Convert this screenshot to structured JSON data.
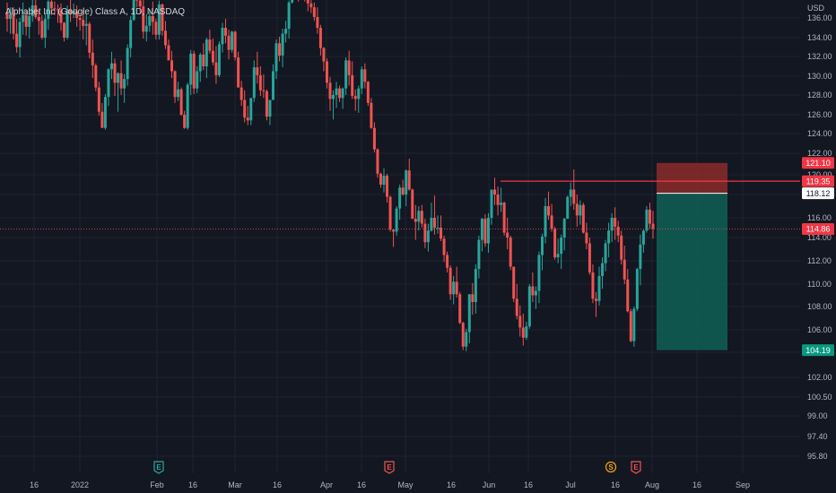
{
  "header": {
    "title": "Alphabet Inc (Google) Class A, 1D, NASDAQ"
  },
  "colors": {
    "background": "#131722",
    "grid": "#1f2330",
    "up": "#26a69a",
    "down": "#ef5350",
    "stop_zone": "#8c2b2b",
    "target_zone": "#0f5c53",
    "level_line": "#f23645",
    "axis_text": "#b2b5be"
  },
  "chart_data": {
    "type": "candlestick",
    "currency": "USD",
    "y_ticks": [
      95.8,
      97.4,
      99.0,
      100.5,
      102.0,
      104.0,
      106.0,
      108.0,
      110.0,
      112.0,
      114.0,
      116.0,
      118.0,
      120.0,
      122.0,
      124.0,
      126.0,
      128.0,
      130.0,
      132.0,
      134.0,
      136.0
    ],
    "x_ticks": [
      "16",
      "2022",
      "Feb",
      "16",
      "Mar",
      "16",
      "Apr",
      "16",
      "May",
      "16",
      "Jun",
      "16",
      "Jul",
      "16",
      "Aug",
      "16",
      "Sep"
    ],
    "price_labels": [
      {
        "value": "121.10",
        "kind": "stop"
      },
      {
        "value": "119.35",
        "kind": "level"
      },
      {
        "value": "118.12",
        "kind": "entry"
      },
      {
        "value": "114.86",
        "kind": "current"
      },
      {
        "value": "104.19",
        "kind": "target"
      }
    ],
    "levels": {
      "horizontal_line": 119.35,
      "current_price": 114.86
    },
    "position": {
      "entry": 118.12,
      "stop": 121.1,
      "target": 104.19,
      "side": "short"
    },
    "events": [
      {
        "symbol": "E",
        "color": "#26a69a",
        "date": "Feb 1"
      },
      {
        "symbol": "E",
        "color": "#ef5350",
        "date": "Apr 26"
      },
      {
        "symbol": "S",
        "color": "#f7a600",
        "date": "Jul 15"
      },
      {
        "symbol": "E",
        "color": "#ef5350",
        "date": "Jul 26"
      }
    ],
    "candles": [
      [
        136.6,
        137.6,
        134.6,
        135.9
      ],
      [
        135.9,
        137.1,
        134.4,
        136.4
      ],
      [
        136.4,
        137.1,
        133.8,
        134.4
      ],
      [
        134.4,
        135.9,
        132.4,
        133.0
      ],
      [
        133.0,
        136.0,
        131.9,
        135.6
      ],
      [
        135.6,
        137.6,
        134.3,
        136.3
      ],
      [
        136.3,
        136.7,
        134.2,
        135.1
      ],
      [
        135.1,
        136.9,
        133.9,
        136.2
      ],
      [
        136.2,
        138.0,
        135.6,
        137.3
      ],
      [
        137.3,
        138.5,
        135.9,
        136.1
      ],
      [
        136.1,
        136.8,
        134.3,
        135.7
      ],
      [
        135.7,
        136.3,
        133.8,
        134.0
      ],
      [
        134.0,
        136.5,
        132.9,
        135.9
      ],
      [
        135.9,
        138.4,
        134.8,
        137.7
      ],
      [
        137.7,
        138.3,
        136.3,
        137.0
      ],
      [
        137.0,
        137.7,
        136.3,
        136.9
      ],
      [
        136.9,
        137.4,
        135.5,
        136.8
      ],
      [
        136.8,
        137.5,
        134.7,
        135.5
      ],
      [
        135.5,
        135.6,
        133.6,
        134.0
      ],
      [
        134.0,
        137.3,
        133.8,
        136.9
      ],
      [
        136.9,
        138.6,
        135.6,
        136.4
      ],
      [
        136.4,
        137.5,
        136.0,
        136.7
      ],
      [
        136.7,
        137.3,
        135.1,
        136.0
      ],
      [
        136.0,
        136.2,
        134.7,
        135.8
      ],
      [
        135.8,
        136.8,
        133.8,
        135.2
      ],
      [
        135.2,
        136.5,
        133.2,
        135.4
      ],
      [
        135.4,
        135.6,
        131.8,
        132.4
      ],
      [
        132.4,
        133.8,
        129.8,
        131.1
      ],
      [
        131.1,
        131.3,
        128.4,
        128.8
      ],
      [
        128.8,
        129.4,
        125.9,
        126.3
      ],
      [
        126.3,
        127.2,
        124.6,
        124.6
      ],
      [
        124.6,
        128.1,
        124.4,
        127.8
      ],
      [
        127.8,
        130.8,
        126.9,
        130.7
      ],
      [
        130.7,
        132.5,
        129.7,
        131.3
      ],
      [
        131.3,
        131.8,
        127.9,
        129.3
      ],
      [
        129.3,
        130.4,
        126.3,
        130.3
      ],
      [
        130.3,
        131.6,
        128.0,
        128.7
      ],
      [
        128.7,
        130.2,
        127.2,
        129.7
      ],
      [
        129.7,
        133.3,
        129.0,
        132.9
      ],
      [
        132.9,
        136.2,
        131.9,
        135.8
      ],
      [
        135.8,
        139.4,
        135.7,
        139.3
      ],
      [
        139.3,
        140.6,
        137.1,
        137.8
      ],
      [
        137.8,
        138.3,
        136.5,
        137.2
      ],
      [
        137.2,
        138.6,
        133.9,
        134.6
      ],
      [
        134.6,
        136.4,
        133.6,
        135.2
      ],
      [
        135.2,
        136.9,
        134.6,
        136.2
      ],
      [
        136.2,
        137.7,
        134.3,
        135.6
      ],
      [
        135.6,
        135.9,
        133.8,
        134.3
      ],
      [
        134.3,
        137.8,
        133.8,
        137.4
      ],
      [
        137.4,
        137.5,
        134.2,
        134.7
      ],
      [
        134.7,
        135.7,
        132.8,
        133.2
      ],
      [
        133.2,
        133.8,
        131.6,
        131.6
      ],
      [
        131.6,
        132.6,
        129.8,
        130.5
      ],
      [
        130.5,
        130.6,
        127.2,
        127.8
      ],
      [
        127.8,
        129.4,
        127.4,
        128.6
      ],
      [
        128.6,
        128.8,
        125.9,
        126.0
      ],
      [
        126.0,
        126.4,
        124.5,
        124.6
      ],
      [
        124.6,
        129.3,
        124.4,
        129.1
      ],
      [
        129.1,
        132.7,
        128.0,
        132.3
      ],
      [
        132.3,
        132.6,
        128.1,
        128.7
      ],
      [
        128.7,
        131.0,
        128.2,
        130.5
      ],
      [
        130.5,
        132.4,
        129.4,
        132.2
      ],
      [
        132.2,
        133.4,
        130.6,
        131.0
      ],
      [
        131.0,
        134.0,
        129.8,
        133.8
      ],
      [
        133.8,
        134.8,
        132.3,
        132.6
      ],
      [
        132.6,
        133.9,
        131.1,
        131.4
      ],
      [
        131.4,
        133.1,
        129.2,
        130.1
      ],
      [
        130.1,
        133.6,
        129.9,
        133.3
      ],
      [
        133.3,
        135.5,
        132.4,
        135.0
      ],
      [
        135.0,
        135.9,
        133.4,
        134.2
      ],
      [
        134.2,
        134.8,
        131.7,
        132.7
      ],
      [
        132.7,
        134.7,
        132.4,
        134.6
      ],
      [
        134.6,
        134.7,
        131.6,
        131.9
      ],
      [
        131.9,
        132.5,
        128.8,
        128.8
      ],
      [
        128.8,
        129.5,
        126.9,
        127.5
      ],
      [
        127.5,
        128.5,
        125.2,
        125.7
      ],
      [
        125.7,
        126.9,
        124.9,
        125.4
      ],
      [
        125.4,
        127.7,
        124.9,
        127.7
      ],
      [
        127.7,
        131.6,
        127.3,
        130.9
      ],
      [
        130.9,
        132.5,
        129.2,
        130.1
      ],
      [
        130.1,
        131.0,
        127.9,
        128.5
      ],
      [
        128.5,
        130.2,
        127.7,
        128.4
      ],
      [
        128.4,
        128.6,
        125.4,
        125.8
      ],
      [
        125.8,
        127.5,
        124.9,
        127.5
      ],
      [
        127.5,
        131.2,
        127.5,
        130.5
      ],
      [
        130.5,
        133.8,
        129.7,
        133.4
      ],
      [
        133.4,
        134.1,
        131.5,
        132.1
      ],
      [
        132.1,
        134.9,
        130.9,
        134.4
      ],
      [
        134.4,
        135.7,
        133.5,
        134.9
      ],
      [
        134.9,
        137.8,
        133.9,
        137.6
      ],
      [
        137.6,
        139.7,
        137.5,
        139.5
      ],
      [
        139.5,
        141.2,
        138.6,
        140.0
      ],
      [
        140.0,
        140.2,
        137.7,
        139.4
      ],
      [
        139.4,
        141.2,
        138.1,
        139.6
      ],
      [
        139.6,
        139.7,
        137.7,
        138.6
      ],
      [
        138.6,
        138.8,
        136.7,
        137.5
      ],
      [
        137.5,
        138.4,
        136.5,
        137.1
      ],
      [
        137.1,
        137.6,
        135.7,
        136.1
      ],
      [
        136.1,
        137.1,
        134.4,
        135.0
      ],
      [
        135.0,
        135.3,
        132.1,
        132.9
      ],
      [
        132.9,
        133.0,
        130.5,
        131.5
      ],
      [
        131.5,
        131.8,
        128.7,
        129.3
      ],
      [
        129.3,
        129.9,
        126.4,
        127.6
      ],
      [
        127.6,
        128.5,
        125.5,
        128.0
      ],
      [
        128.0,
        129.4,
        126.7,
        128.7
      ],
      [
        128.7,
        129.0,
        127.3,
        127.7
      ],
      [
        127.7,
        128.8,
        126.6,
        128.7
      ],
      [
        128.7,
        131.9,
        128.0,
        131.6
      ],
      [
        131.6,
        132.6,
        129.0,
        130.1
      ],
      [
        130.1,
        131.5,
        127.6,
        127.9
      ],
      [
        127.9,
        128.6,
        126.4,
        127.6
      ],
      [
        127.6,
        129.0,
        126.2,
        128.7
      ],
      [
        128.7,
        131.0,
        128.1,
        130.7
      ],
      [
        130.7,
        131.3,
        128.7,
        129.4
      ],
      [
        129.4,
        129.5,
        126.9,
        127.2
      ],
      [
        127.2,
        127.7,
        124.5,
        124.6
      ],
      [
        124.6,
        125.2,
        122.1,
        122.4
      ],
      [
        122.4,
        122.5,
        119.7,
        120.1
      ],
      [
        120.1,
        120.2,
        118.7,
        119.0
      ],
      [
        119.0,
        120.6,
        118.2,
        119.9
      ],
      [
        119.9,
        120.1,
        117.3,
        117.8
      ],
      [
        117.8,
        117.9,
        114.6,
        114.8
      ],
      [
        114.8,
        114.8,
        113.2,
        114.6
      ],
      [
        114.6,
        117.0,
        114.2,
        116.8
      ],
      [
        116.8,
        119.0,
        115.8,
        118.7
      ],
      [
        118.7,
        119.5,
        117.9,
        118.0
      ],
      [
        118.0,
        120.5,
        117.0,
        120.4
      ],
      [
        120.4,
        121.5,
        118.4,
        118.5
      ],
      [
        118.5,
        118.6,
        115.9,
        115.9
      ],
      [
        115.9,
        117.1,
        113.8,
        115.6
      ],
      [
        115.6,
        117.0,
        114.7,
        116.6
      ],
      [
        116.6,
        117.1,
        115.0,
        115.4
      ],
      [
        115.4,
        115.9,
        113.1,
        113.6
      ],
      [
        113.6,
        115.4,
        112.8,
        114.7
      ],
      [
        114.7,
        117.3,
        114.6,
        116.0
      ],
      [
        116.0,
        117.9,
        114.3,
        115.0
      ],
      [
        115.0,
        116.2,
        114.4,
        115.0
      ],
      [
        115.0,
        116.2,
        113.7,
        113.9
      ],
      [
        113.9,
        114.2,
        111.9,
        112.5
      ],
      [
        112.5,
        112.8,
        111.0,
        111.4
      ],
      [
        111.4,
        111.6,
        108.6,
        109.1
      ],
      [
        109.1,
        110.7,
        108.2,
        110.2
      ],
      [
        110.2,
        111.5,
        108.8,
        109.1
      ],
      [
        109.1,
        109.3,
        106.5,
        106.6
      ],
      [
        106.6,
        106.7,
        104.2,
        104.5
      ],
      [
        104.5,
        106.1,
        104.1,
        105.8
      ],
      [
        105.8,
        109.1,
        104.8,
        109.1
      ],
      [
        109.1,
        110.1,
        107.3,
        108.4
      ],
      [
        108.4,
        111.7,
        107.4,
        111.3
      ],
      [
        111.3,
        114.2,
        110.5,
        113.8
      ],
      [
        113.8,
        116.0,
        112.8,
        115.9
      ],
      [
        115.9,
        116.3,
        113.2,
        113.5
      ],
      [
        113.5,
        116.4,
        112.7,
        116.0
      ],
      [
        116.0,
        118.5,
        115.3,
        118.5
      ],
      [
        118.5,
        119.7,
        117.1,
        118.0
      ],
      [
        118.0,
        118.8,
        116.2,
        117.1
      ],
      [
        117.1,
        118.7,
        116.5,
        117.3
      ],
      [
        117.3,
        117.4,
        114.2,
        114.5
      ],
      [
        114.5,
        116.0,
        113.0,
        114.0
      ],
      [
        114.0,
        114.2,
        111.2,
        111.5
      ],
      [
        111.5,
        111.5,
        108.4,
        108.7
      ],
      [
        108.7,
        110.0,
        106.9,
        107.2
      ],
      [
        107.2,
        108.1,
        105.4,
        106.2
      ],
      [
        106.2,
        107.4,
        104.6,
        105.3
      ],
      [
        105.3,
        106.7,
        105.1,
        106.3
      ],
      [
        106.3,
        110.0,
        106.1,
        109.8
      ],
      [
        109.8,
        111.0,
        108.4,
        109.0
      ],
      [
        109.0,
        109.8,
        107.8,
        109.4
      ],
      [
        109.4,
        112.8,
        108.3,
        112.5
      ],
      [
        112.5,
        114.4,
        111.2,
        114.1
      ],
      [
        114.1,
        117.7,
        113.5,
        117.0
      ],
      [
        117.0,
        118.3,
        115.8,
        116.2
      ],
      [
        116.2,
        117.2,
        114.6,
        114.9
      ],
      [
        114.9,
        115.1,
        112.1,
        112.3
      ],
      [
        112.3,
        113.9,
        111.8,
        112.6
      ],
      [
        112.6,
        114.3,
        111.3,
        114.0
      ],
      [
        114.0,
        116.0,
        112.9,
        115.9
      ],
      [
        115.9,
        117.9,
        115.9,
        117.8
      ],
      [
        117.8,
        119.2,
        117.0,
        118.5
      ],
      [
        118.5,
        120.5,
        116.7,
        117.2
      ],
      [
        117.2,
        118.0,
        115.1,
        116.2
      ],
      [
        116.2,
        117.5,
        115.3,
        117.1
      ],
      [
        117.1,
        117.3,
        114.4,
        114.5
      ],
      [
        114.5,
        115.5,
        113.0,
        113.5
      ],
      [
        113.5,
        114.0,
        110.8,
        111.0
      ],
      [
        111.0,
        111.7,
        108.3,
        108.7
      ],
      [
        108.7,
        109.3,
        107.1,
        108.5
      ],
      [
        108.5,
        111.5,
        108.1,
        110.7
      ],
      [
        110.7,
        112.3,
        109.6,
        111.8
      ],
      [
        111.8,
        113.8,
        111.1,
        113.5
      ],
      [
        113.5,
        115.5,
        112.3,
        114.7
      ],
      [
        114.7,
        116.4,
        113.6,
        116.0
      ],
      [
        116.0,
        116.9,
        113.8,
        115.1
      ],
      [
        115.1,
        115.7,
        113.6,
        114.2
      ],
      [
        114.2,
        114.7,
        111.7,
        112.1
      ],
      [
        112.1,
        113.3,
        110.0,
        110.4
      ],
      [
        110.4,
        111.3,
        107.5,
        107.6
      ],
      [
        107.6,
        107.8,
        104.9,
        105.0
      ],
      [
        105.0,
        108.0,
        104.5,
        107.8
      ],
      [
        107.8,
        111.4,
        107.6,
        111.3
      ],
      [
        111.3,
        114.3,
        109.9,
        113.4
      ],
      [
        113.4,
        114.8,
        112.7,
        114.7
      ],
      [
        114.7,
        117.0,
        114.5,
        116.7
      ],
      [
        116.7,
        117.3,
        114.9,
        115.4
      ],
      [
        115.4,
        116.6,
        113.9,
        114.9
      ]
    ]
  }
}
